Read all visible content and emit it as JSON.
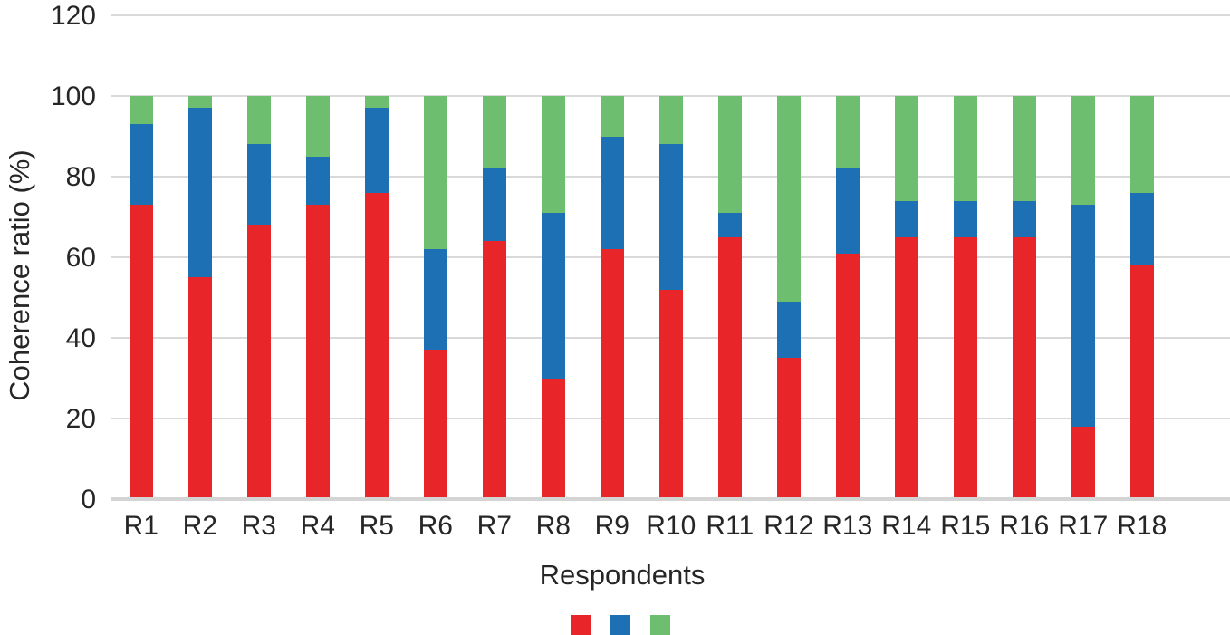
{
  "chart_data": {
    "type": "bar",
    "subtype": "stacked-percent",
    "title": "",
    "xlabel": "Respondents",
    "ylabel": "Coherence ratio (%)",
    "ylim": [
      0,
      120
    ],
    "ytick_interval": 20,
    "yticks": [
      0,
      20,
      40,
      60,
      80,
      100,
      120
    ],
    "grid": "horizontal",
    "legend_position": "bottom-center",
    "legend_has_text_labels": false,
    "categories": [
      "R1",
      "R2",
      "R3",
      "R4",
      "R5",
      "R6",
      "R7",
      "R8",
      "R9",
      "R10",
      "R11",
      "R12",
      "R13",
      "R14",
      "R15",
      "R16",
      "R17",
      "R18"
    ],
    "series": [
      {
        "name": "red-series",
        "color": "#e8262a",
        "values": [
          73,
          55,
          68,
          73,
          76,
          37,
          64,
          30,
          62,
          52,
          65,
          35,
          61,
          65,
          65,
          65,
          18,
          58
        ]
      },
      {
        "name": "blue-series",
        "color": "#1e70b5",
        "values": [
          20,
          42,
          20,
          12,
          21,
          25,
          18,
          41,
          28,
          36,
          6,
          14,
          21,
          9,
          9,
          9,
          55,
          18
        ]
      },
      {
        "name": "green-series",
        "color": "#6dbe6f",
        "values": [
          7,
          3,
          12,
          15,
          3,
          38,
          18,
          29,
          10,
          12,
          29,
          51,
          18,
          26,
          26,
          26,
          27,
          24
        ]
      }
    ],
    "colors": {
      "gridline": "#d9d9d9",
      "axis_line": "#d4d4d4",
      "text": "#262626",
      "background": "#ffffff"
    }
  }
}
